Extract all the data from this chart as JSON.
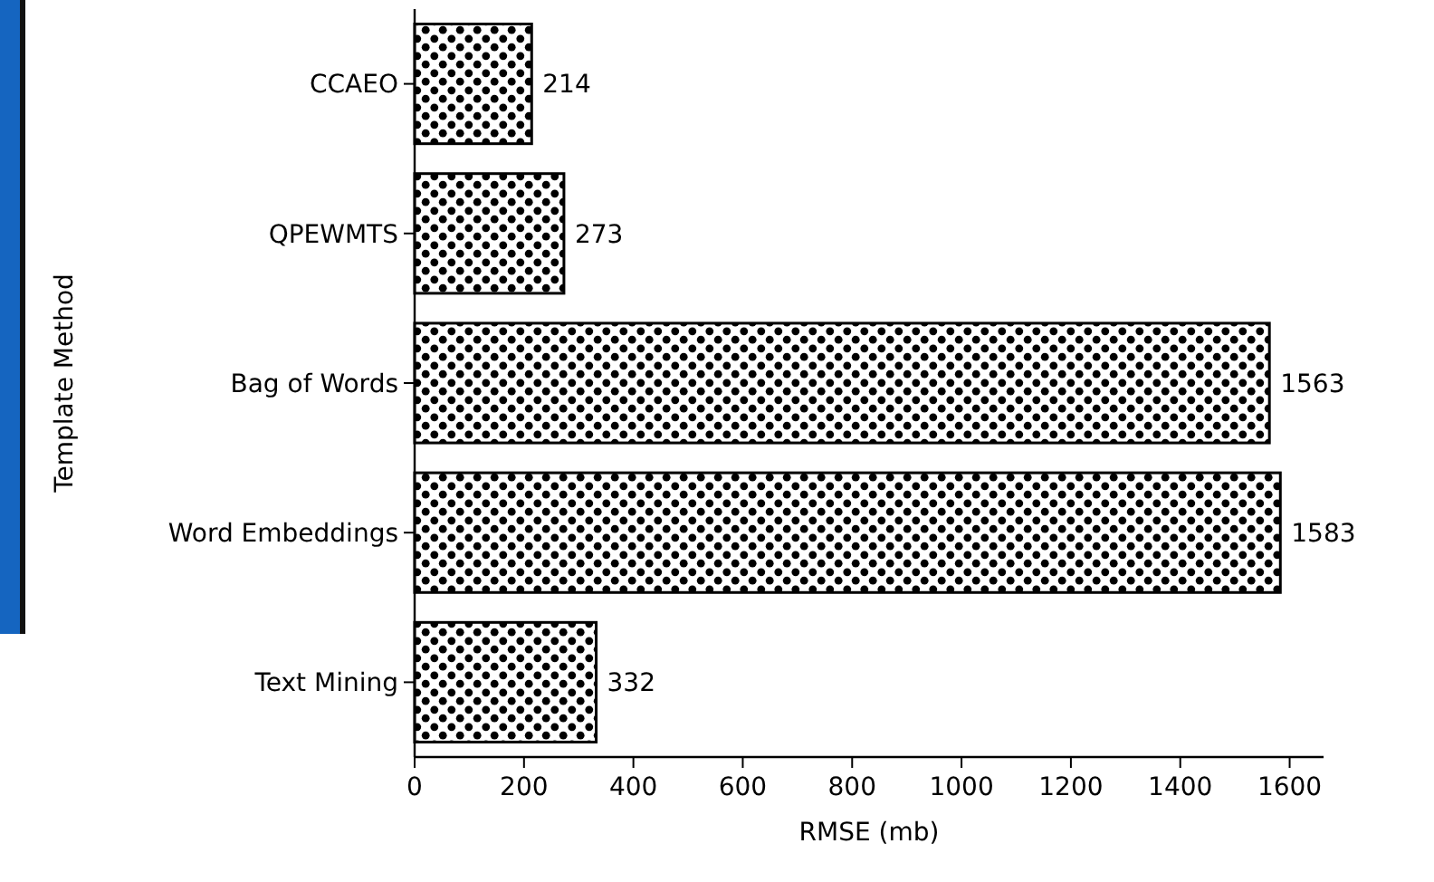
{
  "chart_data": {
    "type": "bar",
    "orientation": "horizontal",
    "xlabel": "RMSE (mb)",
    "ylabel": "Template Method",
    "categories": [
      "CCAEO",
      "QPEWMTS",
      "Bag of Words",
      "Word Embeddings",
      "Text Mining"
    ],
    "values": [
      214,
      273,
      1563,
      1583,
      332
    ],
    "color": "#ffffff",
    "data_labels": true,
    "grid": false,
    "xlim": [
      0,
      1662
    ],
    "xticks": [
      0,
      200,
      400,
      600,
      800,
      1000,
      1200,
      1400,
      1600
    ]
  }
}
